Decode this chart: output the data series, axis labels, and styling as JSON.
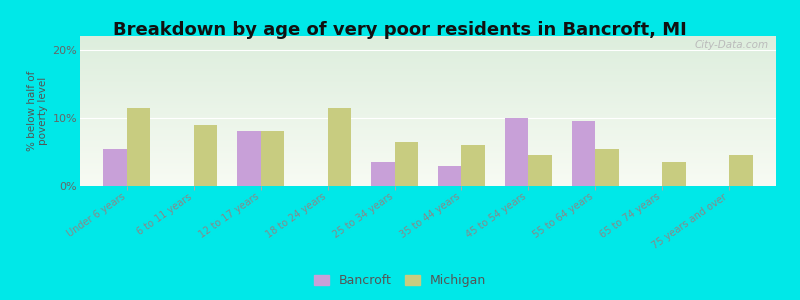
{
  "title": "Breakdown by age of very poor residents in Bancroft, MI",
  "ylabel": "% below half of\npoverty level",
  "categories": [
    "Under 6 years",
    "6 to 11 years",
    "12 to 17 years",
    "18 to 24 years",
    "25 to 34 years",
    "35 to 44 years",
    "45 to 54 years",
    "55 to 64 years",
    "65 to 74 years",
    "75 years and over"
  ],
  "bancroft_values": [
    5.5,
    0.0,
    8.0,
    0.0,
    3.5,
    3.0,
    10.0,
    9.5,
    0.0,
    0.0
  ],
  "michigan_values": [
    11.5,
    9.0,
    8.0,
    11.5,
    6.5,
    6.0,
    4.5,
    5.5,
    3.5,
    4.5
  ],
  "bancroft_color": "#c8a0d8",
  "michigan_color": "#c8cc80",
  "background_outer": "#00e8e8",
  "background_plot_top": "#ddeedd",
  "background_plot_bottom": "#f8fbf4",
  "ylim": [
    0,
    22
  ],
  "yticks": [
    0,
    10,
    20
  ],
  "ytick_labels": [
    "0%",
    "10%",
    "20%"
  ],
  "title_fontsize": 13,
  "legend_labels": [
    "Bancroft",
    "Michigan"
  ],
  "bar_width": 0.35,
  "watermark": "City-Data.com"
}
